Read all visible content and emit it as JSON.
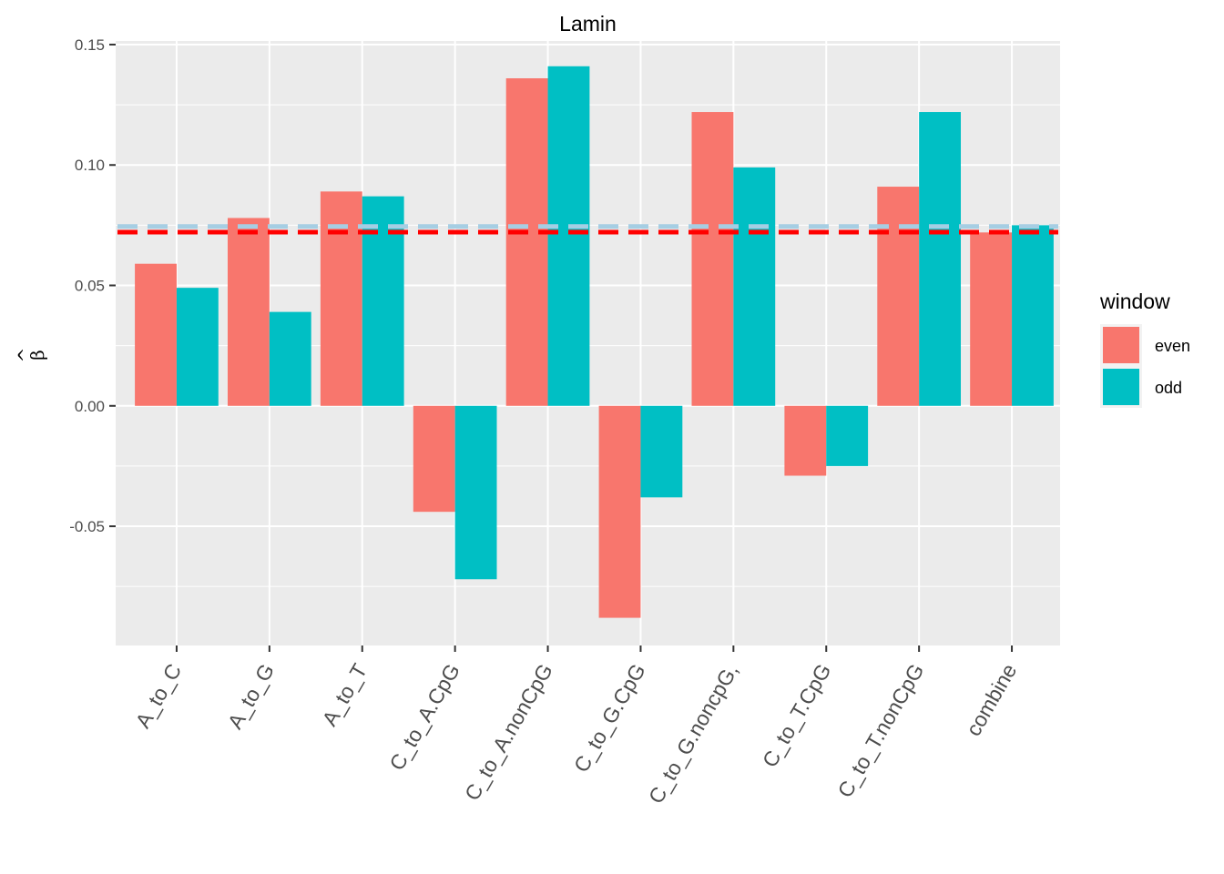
{
  "chart_data": {
    "type": "bar",
    "title": "Lamin",
    "xlabel": "",
    "ylabel": "β̂",
    "ylabel_base": "β",
    "ylabel_hat": "^",
    "categories": [
      "A_to_C",
      "A_to_G",
      "A_to_T",
      "C_to_A.CpG",
      "C_to_A.nonCpG",
      "C_to_G.CpG",
      "C_to_G.noncpG,",
      "C_to_T.CpG",
      "C_to_T.nonCpG",
      "combine"
    ],
    "series": [
      {
        "name": "even",
        "color": "#F8766D",
        "values": [
          0.059,
          0.078,
          0.089,
          -0.044,
          0.136,
          -0.088,
          0.122,
          -0.029,
          0.091,
          0.072
        ]
      },
      {
        "name": "odd",
        "color": "#00BFC4",
        "values": [
          0.049,
          0.039,
          0.087,
          -0.072,
          0.141,
          -0.038,
          0.099,
          -0.025,
          0.122,
          0.075
        ]
      }
    ],
    "reference_lines": [
      {
        "value": 0.0745,
        "color": "#A6CEE3",
        "style": "dashed"
      },
      {
        "value": 0.0721,
        "color": "#FF0000",
        "style": "dashed"
      }
    ],
    "yticks": [
      -0.05,
      0.0,
      0.05,
      0.1,
      0.15
    ],
    "ytick_labels": [
      "-0.05",
      "0.00",
      "0.05",
      "0.10",
      "0.15"
    ],
    "ylim": [
      -0.0995,
      0.1515
    ],
    "grid": true,
    "legend": {
      "title": "window",
      "position": "right"
    },
    "panel_background": "#EBEBEB"
  }
}
